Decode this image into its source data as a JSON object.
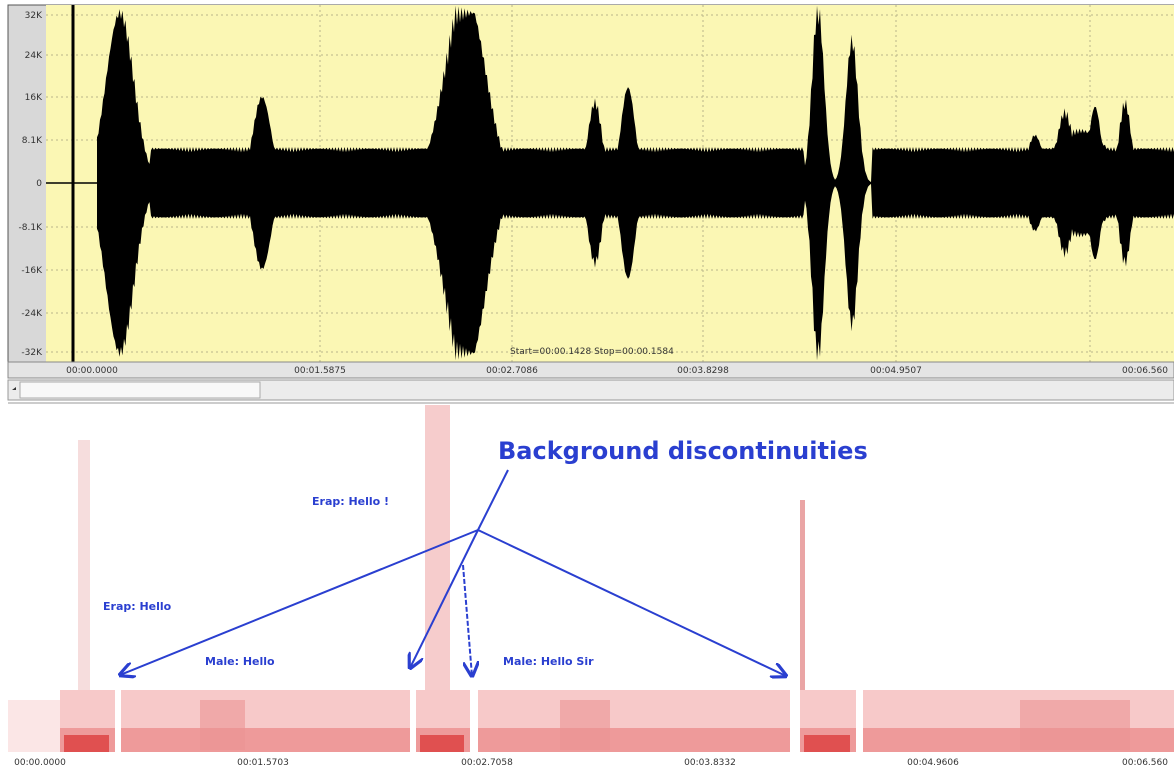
{
  "waveform": {
    "y_axis_labels": [
      "32K",
      "24K",
      "16K",
      "8.1K",
      "0",
      "-8.1K",
      "-16K",
      "-24K",
      "-32K"
    ],
    "time_labels": [
      "00:00.0000",
      "00:01.5875",
      "00:02.7086",
      "00:03.8298",
      "00:04.9507",
      "00:06.560"
    ],
    "selection": "Start=00:00.1428  Stop=00:00.1584"
  },
  "spectrogram": {
    "time_labels": [
      "00:00.0000",
      "00:01.5703",
      "00:02.7058",
      "00:03.8332",
      "00:04.9606",
      "00:06.560"
    ],
    "annotations": {
      "title": "Background discontinuities",
      "labels": [
        "Erap: Hello !",
        "Erap: Hello",
        "Male: Hello",
        "Male: Hello Sir"
      ]
    }
  }
}
